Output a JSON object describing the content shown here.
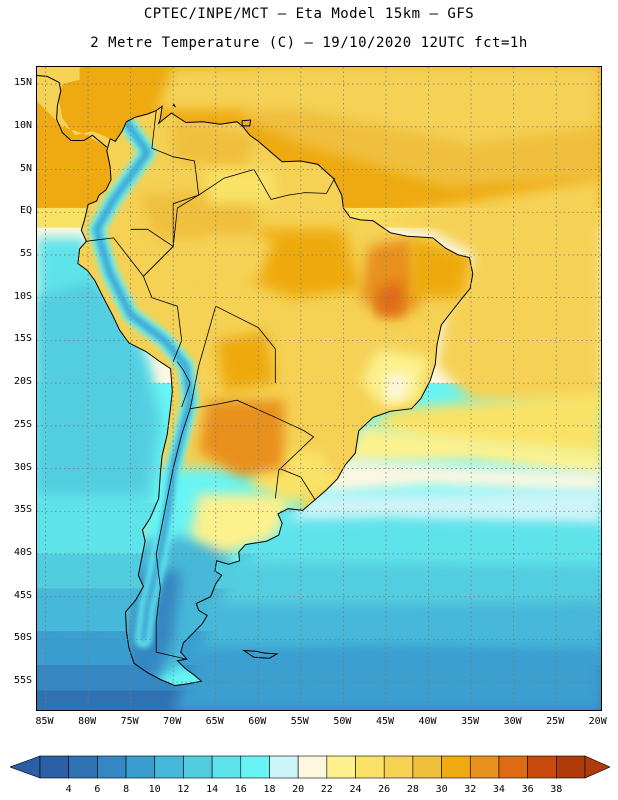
{
  "title": {
    "line1": "CPTEC/INPE/MCT –  Eta Model 15km – GFS",
    "line2": "2 Metre Temperature (C) – 19/10/2020 12UTC fct=1h"
  },
  "map": {
    "projection": "lat-lon",
    "extent": {
      "lon_min": -86,
      "lon_max": -19.5,
      "lat_min": -58.5,
      "lat_max": 17
    },
    "lat_ticks": [
      {
        "value": 15,
        "label": "15N"
      },
      {
        "value": 10,
        "label": "10N"
      },
      {
        "value": 5,
        "label": "5N"
      },
      {
        "value": 0,
        "label": "EQ"
      },
      {
        "value": -5,
        "label": "5S"
      },
      {
        "value": -10,
        "label": "10S"
      },
      {
        "value": -15,
        "label": "15S"
      },
      {
        "value": -20,
        "label": "20S"
      },
      {
        "value": -25,
        "label": "25S"
      },
      {
        "value": -30,
        "label": "30S"
      },
      {
        "value": -35,
        "label": "35S"
      },
      {
        "value": -40,
        "label": "40S"
      },
      {
        "value": -45,
        "label": "45S"
      },
      {
        "value": -50,
        "label": "50S"
      },
      {
        "value": -55,
        "label": "55S"
      }
    ],
    "lon_ticks": [
      {
        "value": -85,
        "label": "85W"
      },
      {
        "value": -80,
        "label": "80W"
      },
      {
        "value": -75,
        "label": "75W"
      },
      {
        "value": -70,
        "label": "70W"
      },
      {
        "value": -65,
        "label": "65W"
      },
      {
        "value": -60,
        "label": "60W"
      },
      {
        "value": -55,
        "label": "55W"
      },
      {
        "value": -50,
        "label": "50W"
      },
      {
        "value": -45,
        "label": "45W"
      },
      {
        "value": -40,
        "label": "40W"
      },
      {
        "value": -35,
        "label": "35W"
      },
      {
        "value": -30,
        "label": "30W"
      },
      {
        "value": -25,
        "label": "25W"
      },
      {
        "value": -20,
        "label": "20W"
      }
    ]
  },
  "colorbar": {
    "unit": "C",
    "levels": [
      "4",
      "6",
      "8",
      "10",
      "12",
      "14",
      "16",
      "18",
      "20",
      "22",
      "24",
      "26",
      "28",
      "30",
      "32",
      "34",
      "36",
      "38"
    ],
    "colors": [
      "#2a5fa5",
      "#2f72b4",
      "#3487c2",
      "#3a9fd0",
      "#46b8d9",
      "#52cde0",
      "#5fe3ea",
      "#68f4f4",
      "#cdf4f9",
      "#fdf7e0",
      "#fdf18e",
      "#f9e266",
      "#f5d154",
      "#f0bf3c",
      "#eeaa10",
      "#e8901c",
      "#df6a14",
      "#c84a0c",
      "#b03a0a"
    ]
  },
  "colors": {
    "frame": "#000000",
    "gridline": "#7a7a7a",
    "coastline": "#000000"
  }
}
